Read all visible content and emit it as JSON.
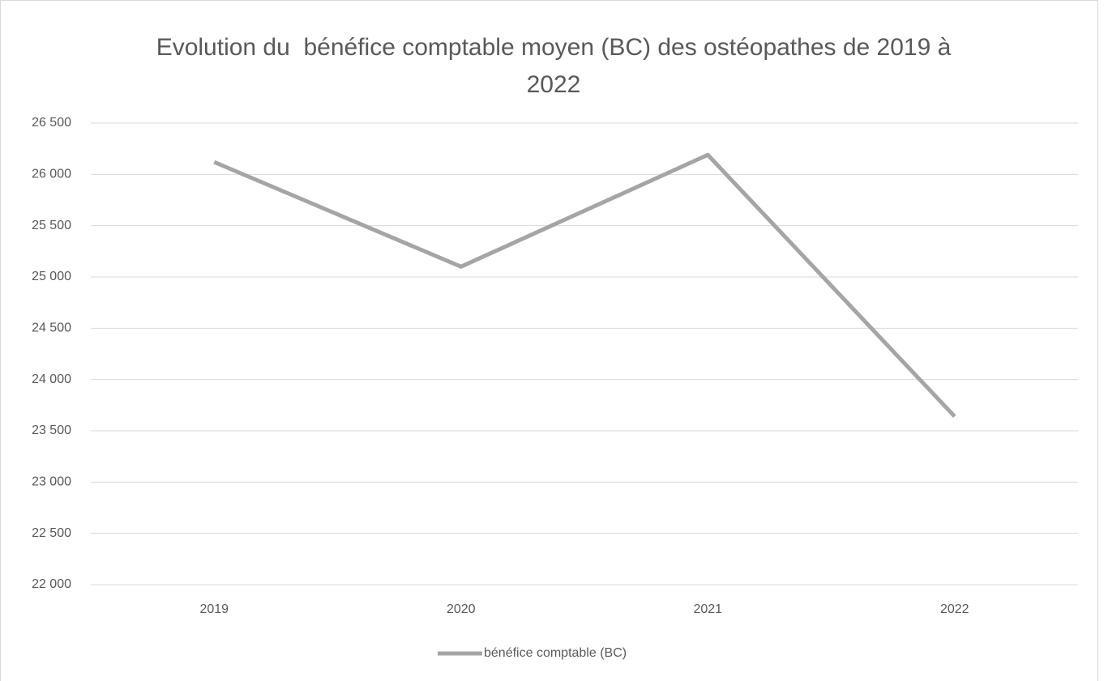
{
  "chart_data": {
    "type": "line",
    "title": "Evolution du  bénéfice comptable moyen (BC) des ostéopathes de 2019 à 2022",
    "categories": [
      "2019",
      "2020",
      "2021",
      "2022"
    ],
    "series": [
      {
        "name": "bénéfice comptable (BC)",
        "color": "#a5a5a5",
        "values": [
          26120,
          25100,
          26190,
          23640
        ]
      }
    ],
    "ylim": [
      22000,
      26500
    ],
    "yticks": [
      {
        "value": 22000,
        "label": "22 000"
      },
      {
        "value": 22500,
        "label": "22 500"
      },
      {
        "value": 23000,
        "label": "23 000"
      },
      {
        "value": 23500,
        "label": "23 500"
      },
      {
        "value": 24000,
        "label": "24 000"
      },
      {
        "value": 24500,
        "label": "24 500"
      },
      {
        "value": 25000,
        "label": "25 000"
      },
      {
        "value": 25500,
        "label": "25 500"
      },
      {
        "value": 26000,
        "label": "26 000"
      },
      {
        "value": 26500,
        "label": "26 500"
      }
    ],
    "grid": true,
    "legend": "bottom"
  }
}
